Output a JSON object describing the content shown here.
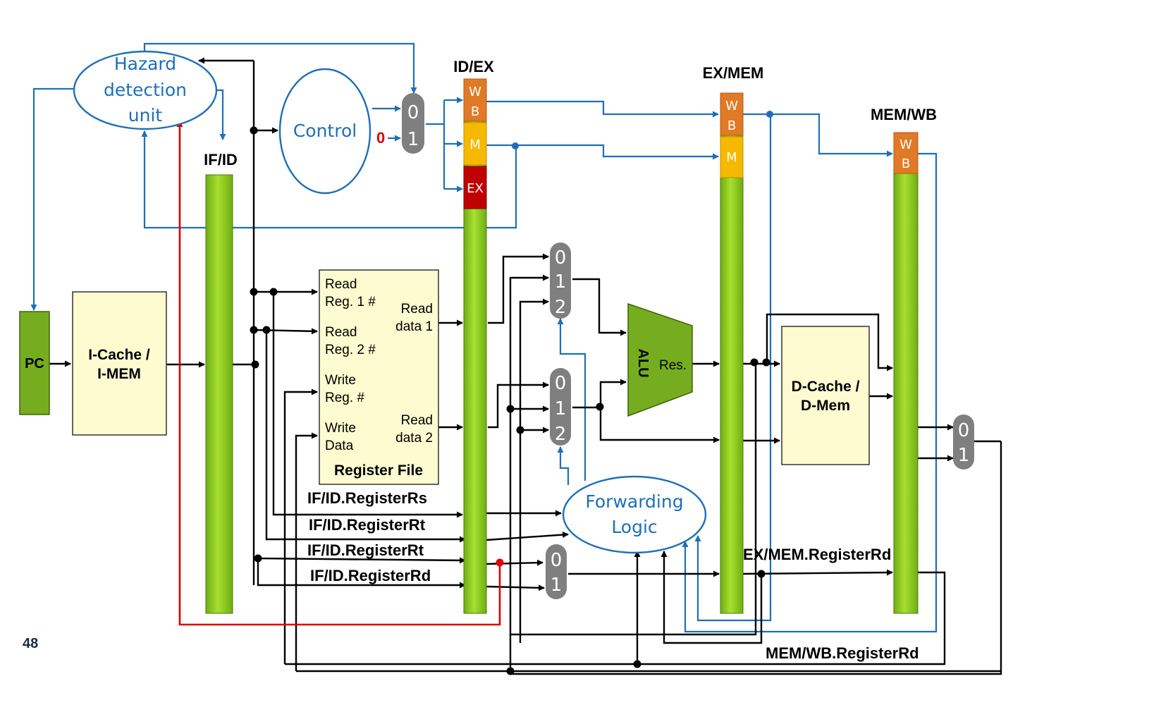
{
  "page_number": "48",
  "pipeline_registers": {
    "if_id": "IF/ID",
    "id_ex": "ID/EX",
    "ex_mem": "EX/MEM",
    "mem_wb": "MEM/WB"
  },
  "control_fields": {
    "wb": [
      "W",
      "B"
    ],
    "m": "M",
    "ex": "EX"
  },
  "blocks": {
    "pc": "PC",
    "icache": [
      "I-Cache /",
      "I-MEM"
    ],
    "dcache": [
      "D-Cache /",
      "D-Mem"
    ],
    "alu": "ALU",
    "alu_result": "Res.",
    "hazard_unit": [
      "Hazard",
      "detection",
      "unit"
    ],
    "control": "Control",
    "control_zero": "0",
    "forwarding": [
      "Forwarding",
      "Logic"
    ]
  },
  "register_file": {
    "title": "Register File",
    "read_reg1": [
      "Read",
      "Reg. 1 #"
    ],
    "read_reg2": [
      "Read",
      "Reg. 2 #"
    ],
    "write_reg": [
      "Write",
      "Reg. #"
    ],
    "write_data": [
      "Write",
      "Data"
    ],
    "read_data1": [
      "Read",
      "data 1"
    ],
    "read_data2": [
      "Read",
      "data 2"
    ]
  },
  "mux_inputs": {
    "two_way": [
      "0",
      "1"
    ],
    "three_way": [
      "0",
      "1",
      "2"
    ]
  },
  "signal_labels": {
    "rs": "IF/ID.RegisterRs",
    "rt1": "IF/ID.RegisterRt",
    "rt2": "IF/ID.RegisterRt",
    "rd": "IF/ID.RegisterRd",
    "ex_mem_rd": "EX/MEM.RegisterRd",
    "mem_wb_rd": "MEM/WB.RegisterRd"
  },
  "colors": {
    "pipeline_green": "#8ccc20",
    "block_yellow": "#fdfbd0",
    "mux_gray": "#7f7f7f",
    "wb_orange": "#e07a26",
    "m_yellow": "#f7b800",
    "ex_red": "#c00000",
    "blue_wire": "#1e6fb8",
    "red_wire": "#e00000"
  }
}
